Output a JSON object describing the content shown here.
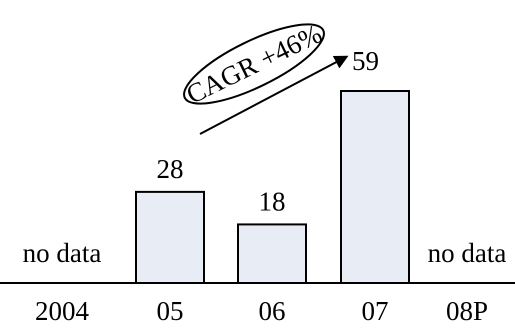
{
  "chart_data": {
    "type": "bar",
    "categories": [
      "2004",
      "05",
      "06",
      "07",
      "08P"
    ],
    "values": [
      null,
      28,
      18,
      59,
      null
    ],
    "data_labels": [
      "",
      "28",
      "18",
      "59",
      ""
    ],
    "missing_label": "no data",
    "annotation": {
      "text": "CAGR +46%",
      "from": "05",
      "to": "07"
    },
    "ylim": [
      0,
      59
    ],
    "grid": false,
    "colors": {
      "bar_fill": "#e8ecf4",
      "bar_stroke": "#000000",
      "axis": "#000000"
    }
  }
}
